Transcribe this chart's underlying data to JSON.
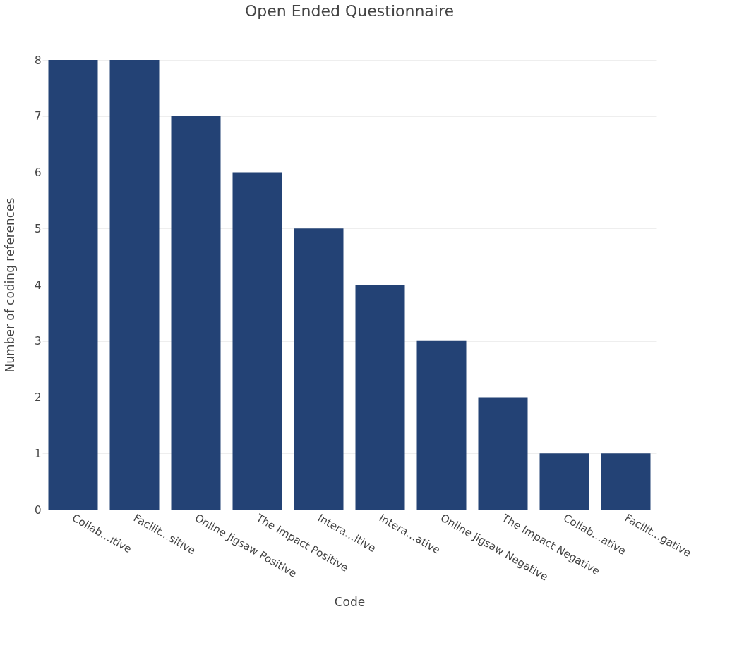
{
  "chart_data": {
    "type": "bar",
    "title": "Open Ended Questionnaire",
    "xlabel": "Code",
    "ylabel": "Number of coding references",
    "categories": [
      "Collab…itive",
      "Facilit…sitive",
      "Online Jigsaw Positive",
      "The Impact Positive",
      "Intera…itive",
      "Intera…ative",
      "Online Jigsaw Negative",
      "The Impact Negative",
      "Collab…ative",
      "Facilit…gative"
    ],
    "values": [
      8,
      8,
      7,
      6,
      5,
      4,
      3,
      2,
      1,
      1
    ],
    "color": "#234275",
    "ylim": [
      0,
      8
    ],
    "yticks": [
      0,
      1,
      2,
      3,
      4,
      5,
      6,
      7,
      8
    ],
    "grid": "y"
  }
}
